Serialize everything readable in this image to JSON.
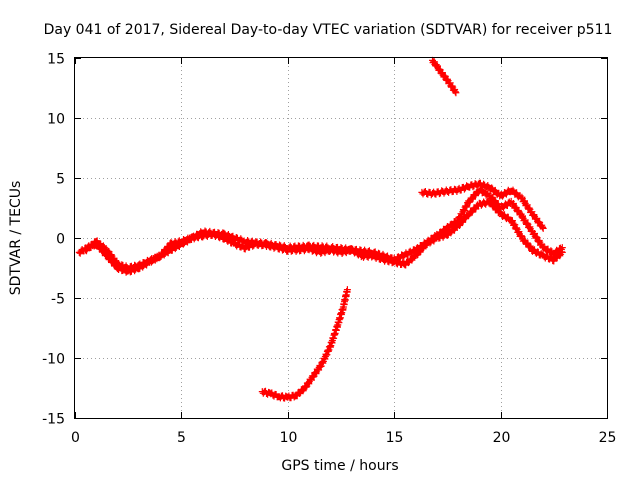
{
  "chart_data": {
    "type": "scatter",
    "title": "Day 041 of 2017, Sidereal Day-to-day VTEC variation (SDTVAR) for receiver p511",
    "xlabel": "GPS time / hours",
    "ylabel": "SDTVAR / TECUs",
    "xlim": [
      0,
      25
    ],
    "ylim": [
      -15,
      15
    ],
    "xticks": [
      0,
      5,
      10,
      15,
      20,
      25
    ],
    "xtick_labels": [
      "0",
      "5",
      "10",
      "15",
      "20",
      "25"
    ],
    "yticks": [
      -15,
      -10,
      -5,
      0,
      5,
      10,
      15
    ],
    "ytick_labels": [
      "-15",
      "-10",
      "-5",
      "0",
      "5",
      "10",
      "15"
    ],
    "grid": true,
    "marker": "+",
    "series_color": "#ff0000",
    "series": [
      {
        "name": "main-track-a",
        "x": [
          0.2,
          0.6,
          1.0,
          1.5,
          2.0,
          2.5,
          3.0,
          3.5,
          4.0,
          4.5,
          5.0,
          5.5,
          6.0,
          6.5,
          7.0,
          7.5,
          8.0,
          8.5,
          9.0,
          9.5,
          10.0,
          10.5,
          11.0,
          11.5,
          12.0,
          12.5,
          13.0,
          13.5,
          14.0,
          14.5,
          15.0,
          15.5,
          16.0,
          16.5,
          17.0,
          17.5,
          18.0,
          18.5,
          19.0,
          19.5,
          20.0,
          20.5,
          21.0,
          21.5,
          22.0,
          22.5,
          22.9
        ],
        "y": [
          -1.2,
          -0.8,
          -0.5,
          -1.5,
          -2.5,
          -2.8,
          -2.5,
          -2.0,
          -1.5,
          -0.5,
          -0.3,
          0.0,
          0.2,
          0.3,
          0.0,
          -0.5,
          -0.8,
          -0.5,
          -0.6,
          -0.8,
          -1.0,
          -1.0,
          -0.9,
          -1.2,
          -1.0,
          -1.2,
          -1.0,
          -1.5,
          -1.5,
          -1.8,
          -2.0,
          -2.2,
          -1.5,
          -0.5,
          0.0,
          0.3,
          1.0,
          2.0,
          2.8,
          3.0,
          2.0,
          1.5,
          0.0,
          -1.0,
          -1.5,
          -1.8,
          -1.2
        ]
      },
      {
        "name": "main-track-b",
        "x": [
          0.5,
          1.0,
          1.5,
          2.0,
          2.5,
          3.0,
          4.0,
          5.0,
          6.0,
          7.0,
          8.0,
          9.0,
          10.0,
          11.0,
          12.0,
          13.0,
          14.0,
          15.0,
          16.0,
          17.0,
          18.0,
          18.5,
          19.0,
          19.5,
          20.0,
          20.5,
          21.0,
          21.5,
          22.0,
          22.5,
          22.9
        ],
        "y": [
          -1.0,
          -0.3,
          -1.0,
          -2.2,
          -2.5,
          -2.3,
          -1.5,
          -0.5,
          0.5,
          0.3,
          -0.3,
          -0.5,
          -0.8,
          -0.7,
          -0.8,
          -1.0,
          -1.2,
          -1.8,
          -1.0,
          0.2,
          1.5,
          3.0,
          4.0,
          3.5,
          2.5,
          3.0,
          1.8,
          0.5,
          -0.8,
          -1.3,
          -0.8
        ]
      },
      {
        "name": "upper-track",
        "x": [
          16.3,
          16.8,
          17.5,
          18.0,
          18.5,
          19.0,
          19.5,
          20.0,
          20.5,
          21.0,
          21.5,
          22.0
        ],
        "y": [
          3.8,
          3.7,
          3.9,
          4.0,
          4.3,
          4.5,
          4.2,
          3.5,
          4.0,
          3.3,
          2.0,
          0.8
        ]
      },
      {
        "name": "falling-track",
        "x": [
          16.8,
          17.0,
          17.3,
          17.6,
          17.9
        ],
        "y": [
          14.8,
          14.3,
          13.6,
          12.9,
          12.1
        ]
      },
      {
        "name": "rising-track",
        "x": [
          8.8,
          9.2,
          9.6,
          10.0,
          10.4,
          10.8,
          11.2,
          11.6,
          12.0,
          12.3,
          12.6,
          12.8
        ],
        "y": [
          -12.8,
          -13.0,
          -13.2,
          -13.3,
          -13.1,
          -12.5,
          -11.5,
          -10.5,
          -9.0,
          -7.5,
          -5.8,
          -4.3
        ]
      }
    ]
  }
}
